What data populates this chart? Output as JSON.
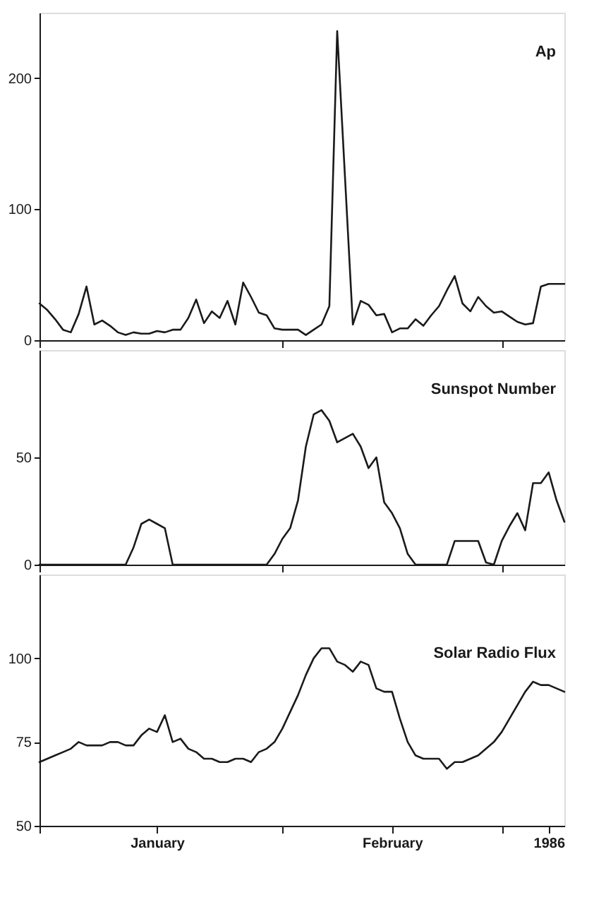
{
  "chart_data": [
    {
      "type": "line",
      "title": "Ap",
      "xlim": [
        "1986-01-01",
        "1986-03-09"
      ],
      "xticks": [
        {
          "value": "1986-01-01",
          "label": null
        },
        {
          "value": "1986-02-01",
          "label": null
        },
        {
          "value": "1986-03-01",
          "label": null
        }
      ],
      "ylim": [
        0,
        250
      ],
      "yticks": [
        0,
        100,
        200
      ],
      "grid": false,
      "tick_labels": "y",
      "series": [
        {
          "color": "#1a1a1a",
          "x": [
            "1986-01-01",
            "1986-01-02",
            "1986-01-03",
            "1986-01-04",
            "1986-01-05",
            "1986-01-06",
            "1986-01-07",
            "1986-01-08",
            "1986-01-09",
            "1986-01-10",
            "1986-01-11",
            "1986-01-12",
            "1986-01-13",
            "1986-01-14",
            "1986-01-15",
            "1986-01-16",
            "1986-01-17",
            "1986-01-18",
            "1986-01-19",
            "1986-01-20",
            "1986-01-21",
            "1986-01-22",
            "1986-01-23",
            "1986-01-24",
            "1986-01-25",
            "1986-01-26",
            "1986-01-27",
            "1986-01-28",
            "1986-01-29",
            "1986-01-30",
            "1986-01-31",
            "1986-02-01",
            "1986-02-02",
            "1986-02-03",
            "1986-02-04",
            "1986-02-05",
            "1986-02-06",
            "1986-02-07",
            "1986-02-08",
            "1986-02-10",
            "1986-02-11",
            "1986-02-12",
            "1986-02-13",
            "1986-02-14",
            "1986-02-15",
            "1986-02-16",
            "1986-02-17",
            "1986-02-18",
            "1986-02-19",
            "1986-02-20",
            "1986-02-21",
            "1986-02-22",
            "1986-02-23",
            "1986-02-24",
            "1986-02-25",
            "1986-02-26",
            "1986-02-27",
            "1986-02-28",
            "1986-03-01",
            "1986-03-02",
            "1986-03-03",
            "1986-03-04",
            "1986-03-05",
            "1986-03-06",
            "1986-03-07",
            "1986-03-08",
            "1986-03-09"
          ],
          "values": [
            28,
            23,
            16,
            8,
            6,
            20,
            41,
            12,
            15,
            11,
            6,
            4,
            6,
            5,
            5,
            7,
            6,
            8,
            8,
            17,
            31,
            13,
            22,
            17,
            30,
            12,
            44,
            33,
            21,
            19,
            9,
            8,
            8,
            8,
            4,
            8,
            12,
            26,
            236,
            12,
            30,
            27,
            19,
            20,
            6,
            9,
            9,
            16,
            11,
            19,
            26,
            38,
            49,
            28,
            22,
            33,
            26,
            21,
            22,
            18,
            14,
            12,
            13,
            41,
            43,
            43,
            43
          ]
        }
      ]
    },
    {
      "type": "line",
      "title": "Sunspot Number",
      "xlim": [
        "1986-01-01",
        "1986-03-09"
      ],
      "xticks": [
        {
          "value": "1986-01-01",
          "label": null
        },
        {
          "value": "1986-02-01",
          "label": null
        },
        {
          "value": "1986-03-01",
          "label": null
        }
      ],
      "ylim": [
        0,
        100
      ],
      "yticks": [
        0,
        50
      ],
      "grid": false,
      "tick_labels": "y",
      "series": [
        {
          "color": "#1a1a1a",
          "x": [
            "1986-01-01",
            "1986-01-02",
            "1986-01-03",
            "1986-01-04",
            "1986-01-05",
            "1986-01-06",
            "1986-01-07",
            "1986-01-08",
            "1986-01-09",
            "1986-01-10",
            "1986-01-11",
            "1986-01-12",
            "1986-01-13",
            "1986-01-14",
            "1986-01-15",
            "1986-01-16",
            "1986-01-17",
            "1986-01-18",
            "1986-01-19",
            "1986-01-20",
            "1986-01-21",
            "1986-01-22",
            "1986-01-23",
            "1986-01-24",
            "1986-01-25",
            "1986-01-26",
            "1986-01-27",
            "1986-01-28",
            "1986-01-29",
            "1986-01-30",
            "1986-01-31",
            "1986-02-01",
            "1986-02-02",
            "1986-02-03",
            "1986-02-04",
            "1986-02-05",
            "1986-02-06",
            "1986-02-07",
            "1986-02-08",
            "1986-02-09",
            "1986-02-10",
            "1986-02-11",
            "1986-02-12",
            "1986-02-13",
            "1986-02-14",
            "1986-02-15",
            "1986-02-16",
            "1986-02-17",
            "1986-02-18",
            "1986-02-19",
            "1986-02-20",
            "1986-02-21",
            "1986-02-22",
            "1986-02-23",
            "1986-02-24",
            "1986-02-25",
            "1986-02-26",
            "1986-02-27",
            "1986-02-28",
            "1986-03-01",
            "1986-03-02",
            "1986-03-03",
            "1986-03-04",
            "1986-03-05",
            "1986-03-06",
            "1986-03-07",
            "1986-03-08",
            "1986-03-09"
          ],
          "values": [
            0,
            0,
            0,
            0,
            0,
            0,
            0,
            0,
            0,
            0,
            0,
            0,
            8,
            19,
            21,
            19,
            17,
            0,
            0,
            0,
            0,
            0,
            0,
            0,
            0,
            0,
            0,
            0,
            0,
            0,
            5,
            12,
            17,
            30,
            55,
            70,
            72,
            67,
            57,
            59,
            61,
            55,
            45,
            50,
            29,
            24,
            17,
            5,
            0,
            0,
            0,
            0,
            0,
            11,
            11,
            11,
            11,
            1,
            0,
            11,
            18,
            24,
            16,
            38,
            38,
            43,
            30,
            20
          ]
        }
      ]
    },
    {
      "type": "line",
      "title": "Solar Radio Flux",
      "xlim": [
        "1986-01-01",
        "1986-03-09"
      ],
      "xticks": [
        {
          "value": "1986-01-01",
          "label": null
        },
        {
          "value": "1986-01-16",
          "label": "January"
        },
        {
          "value": "1986-02-01",
          "label": null
        },
        {
          "value": "1986-02-15",
          "label": "February"
        },
        {
          "value": "1986-03-01",
          "label": null
        },
        {
          "value": "1986-03-07",
          "label": "1986"
        }
      ],
      "ylim": [
        50,
        125
      ],
      "yticks": [
        50,
        75,
        100
      ],
      "grid": false,
      "series": [
        {
          "color": "#1a1a1a",
          "x": [
            "1986-01-01",
            "1986-01-02",
            "1986-01-03",
            "1986-01-04",
            "1986-01-05",
            "1986-01-06",
            "1986-01-07",
            "1986-01-08",
            "1986-01-09",
            "1986-01-10",
            "1986-01-11",
            "1986-01-12",
            "1986-01-13",
            "1986-01-14",
            "1986-01-15",
            "1986-01-16",
            "1986-01-17",
            "1986-01-18",
            "1986-01-19",
            "1986-01-20",
            "1986-01-21",
            "1986-01-22",
            "1986-01-23",
            "1986-01-24",
            "1986-01-25",
            "1986-01-26",
            "1986-01-27",
            "1986-01-28",
            "1986-01-29",
            "1986-01-30",
            "1986-01-31",
            "1986-02-01",
            "1986-02-02",
            "1986-02-03",
            "1986-02-04",
            "1986-02-05",
            "1986-02-06",
            "1986-02-07",
            "1986-02-08",
            "1986-02-09",
            "1986-02-10",
            "1986-02-11",
            "1986-02-12",
            "1986-02-13",
            "1986-02-14",
            "1986-02-15",
            "1986-02-16",
            "1986-02-17",
            "1986-02-18",
            "1986-02-19",
            "1986-02-20",
            "1986-02-21",
            "1986-02-22",
            "1986-02-23",
            "1986-02-24",
            "1986-02-25",
            "1986-02-26",
            "1986-02-27",
            "1986-02-28",
            "1986-03-01",
            "1986-03-02",
            "1986-03-03",
            "1986-03-04",
            "1986-03-05",
            "1986-03-06",
            "1986-03-07",
            "1986-03-08",
            "1986-03-09"
          ],
          "values": [
            69,
            70,
            71,
            72,
            73,
            75,
            74,
            74,
            74,
            75,
            75,
            74,
            74,
            77,
            79,
            78,
            83,
            75,
            76,
            73,
            72,
            70,
            70,
            69,
            69,
            70,
            70,
            69,
            72,
            73,
            75,
            79,
            84,
            89,
            95,
            100,
            103,
            103,
            99,
            98,
            96,
            99,
            98,
            91,
            90,
            90,
            82,
            75,
            71,
            70,
            70,
            70,
            67,
            69,
            69,
            70,
            71,
            73,
            75,
            78,
            82,
            86,
            90,
            93,
            92,
            92,
            91,
            90
          ]
        }
      ]
    }
  ]
}
